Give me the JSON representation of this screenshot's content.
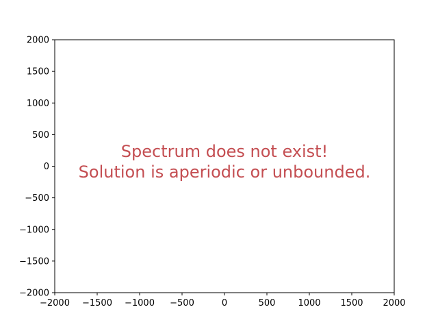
{
  "chart_data": {
    "type": "scatter",
    "title": "",
    "xlabel": "",
    "ylabel": "",
    "xlim": [
      -2000,
      2000
    ],
    "ylim": [
      -2000,
      2000
    ],
    "x_ticks": [
      -2000,
      -1500,
      -1000,
      -500,
      0,
      500,
      1000,
      1500,
      2000
    ],
    "y_ticks": [
      -2000,
      -1500,
      -1000,
      -500,
      0,
      500,
      1000,
      1500,
      2000
    ],
    "x_tick_labels": [
      "−2000",
      "−1500",
      "−1000",
      "−500",
      "0",
      "500",
      "1000",
      "1500",
      "2000"
    ],
    "y_tick_labels": [
      "−2000",
      "−1500",
      "−1000",
      "−500",
      "0",
      "500",
      "1000",
      "1500",
      "2000"
    ],
    "series": [],
    "grid": false,
    "annotation": {
      "lines": [
        "Spectrum does not exist!",
        "Solution is aperiodic or unbounded."
      ],
      "color": "#c44e52"
    }
  }
}
